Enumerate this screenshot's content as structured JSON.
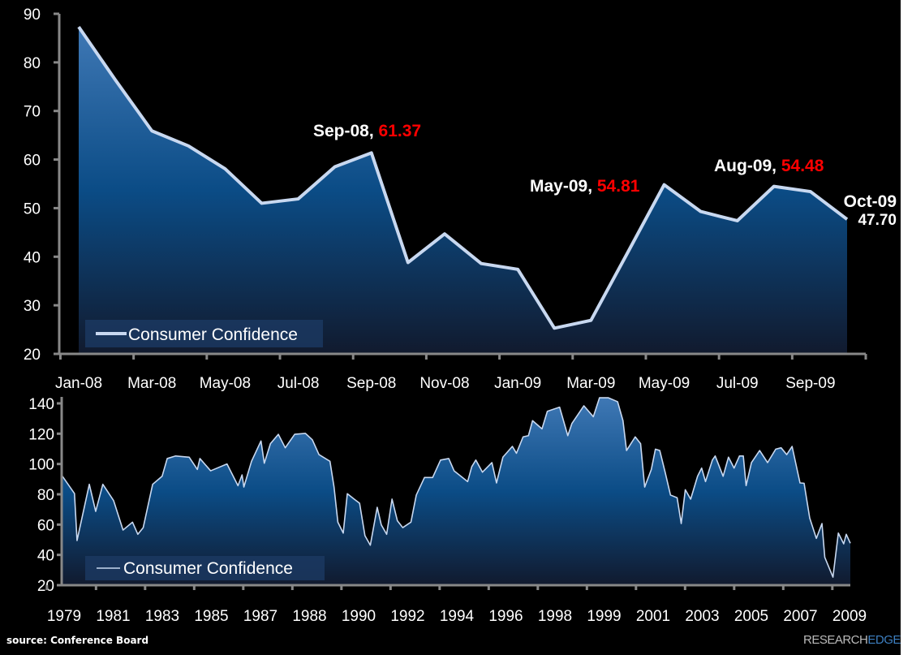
{
  "chart_data": [
    {
      "type": "area",
      "categories": [
        "Jan-08",
        "Feb-08",
        "Mar-08",
        "Apr-08",
        "May-08",
        "Jun-08",
        "Jul-08",
        "Aug-08",
        "Sep-08",
        "Oct-08",
        "Nov-08",
        "Dec-08",
        "Jan-09",
        "Feb-09",
        "Mar-09",
        "Apr-09",
        "May-09",
        "Jun-09",
        "Jul-09",
        "Aug-09",
        "Sep-09",
        "Oct-09"
      ],
      "tick_labels": [
        "Jan-08",
        "Mar-08",
        "May-08",
        "Jul-08",
        "Sep-08",
        "Nov-08",
        "Jan-09",
        "Mar-09",
        "May-09",
        "Jul-09",
        "Sep-09"
      ],
      "series": [
        {
          "name": "Consumer Confidence",
          "values": [
            87.3,
            76.4,
            65.9,
            62.8,
            58.1,
            51.0,
            51.9,
            58.5,
            61.37,
            38.8,
            44.7,
            38.6,
            37.4,
            25.3,
            26.9,
            40.8,
            54.81,
            49.3,
            47.4,
            54.48,
            53.4,
            47.7
          ]
        }
      ],
      "ylim": [
        20,
        90
      ],
      "yticks": [
        20,
        30,
        40,
        50,
        60,
        70,
        80,
        90
      ],
      "legend": "bottom-left",
      "grid": false,
      "annotations": [
        {
          "label": "Sep-08, ",
          "value": "61.37",
          "index": 8
        },
        {
          "label": "May-09, ",
          "value": "54.81",
          "index": 16
        },
        {
          "label": "Aug-09, ",
          "value": "54.48",
          "index": 19
        },
        {
          "label": "Oct-09",
          "value": "47.70",
          "index": 21
        }
      ],
      "colors": {
        "line": "#c8d8f0",
        "fill_top": "#3f78b5",
        "fill_bottom": "#111a2e",
        "annotation_value": "#ff0000"
      }
    },
    {
      "type": "area",
      "x_unit": "year",
      "tick_labels": [
        "1979",
        "1981",
        "1983",
        "1985",
        "1987",
        "1988",
        "1990",
        "1992",
        "1994",
        "1996",
        "1998",
        "1999",
        "2001",
        "2003",
        "2005",
        "2007",
        "2009"
      ],
      "series": [
        {
          "name": "Consumer Confidence",
          "points": [
            [
              1979.0,
              91.9
            ],
            [
              1979.47,
              80.5
            ],
            [
              1979.57,
              49.5
            ],
            [
              1980.05,
              86.6
            ],
            [
              1980.3,
              68.7
            ],
            [
              1980.58,
              86.6
            ],
            [
              1981.0,
              75.9
            ],
            [
              1981.37,
              56.4
            ],
            [
              1981.74,
              61.6
            ],
            [
              1981.95,
              53.6
            ],
            [
              1982.16,
              58
            ],
            [
              1982.53,
              86.6
            ],
            [
              1982.9,
              91.9
            ],
            [
              1983.1,
              103.6
            ],
            [
              1983.43,
              105.3
            ],
            [
              1983.96,
              104.5
            ],
            [
              1984.28,
              96.4
            ],
            [
              1984.38,
              103.6
            ],
            [
              1984.8,
              95.5
            ],
            [
              1985.44,
              100
            ],
            [
              1985.87,
              85.7
            ],
            [
              1986.03,
              92.8
            ],
            [
              1986.1,
              84.8
            ],
            [
              1986.4,
              101.8
            ],
            [
              1986.77,
              115.2
            ],
            [
              1986.9,
              100.5
            ],
            [
              1987.14,
              113.4
            ],
            [
              1987.45,
              119.6
            ],
            [
              1987.72,
              110.7
            ],
            [
              1988.09,
              119.6
            ],
            [
              1988.51,
              120.2
            ],
            [
              1988.78,
              116
            ],
            [
              1989.04,
              106.2
            ],
            [
              1989.47,
              101.8
            ],
            [
              1989.63,
              84.8
            ],
            [
              1989.78,
              61.6
            ],
            [
              1989.99,
              54.4
            ],
            [
              1990.15,
              80.4
            ],
            [
              1990.42,
              76.8
            ],
            [
              1990.63,
              74.1
            ],
            [
              1990.84,
              52.7
            ],
            [
              1991.05,
              46.4
            ],
            [
              1991.32,
              71.4
            ],
            [
              1991.48,
              59.8
            ],
            [
              1991.69,
              53.6
            ],
            [
              1991.9,
              76.8
            ],
            [
              1992.11,
              62.5
            ],
            [
              1992.32,
              58
            ],
            [
              1992.64,
              61.6
            ],
            [
              1992.85,
              79.5
            ],
            [
              1993.17,
              91.1
            ],
            [
              1993.49,
              91.1
            ],
            [
              1993.8,
              102.6
            ],
            [
              1994.12,
              103.6
            ],
            [
              1994.33,
              95.5
            ],
            [
              1994.86,
              88.4
            ],
            [
              1995.02,
              98.2
            ],
            [
              1995.18,
              102.6
            ],
            [
              1995.44,
              94.6
            ],
            [
              1995.81,
              100.9
            ],
            [
              1995.99,
              87.5
            ],
            [
              1996.24,
              104.5
            ],
            [
              1996.61,
              111.6
            ],
            [
              1996.77,
              107.1
            ],
            [
              1997.03,
              117.9
            ],
            [
              1997.24,
              118.7
            ],
            [
              1997.4,
              128.6
            ],
            [
              1997.77,
              123.2
            ],
            [
              1997.98,
              134.8
            ],
            [
              1998.46,
              137.5
            ],
            [
              1998.78,
              118.7
            ],
            [
              1998.94,
              126.7
            ],
            [
              1999.41,
              138.4
            ],
            [
              1999.78,
              131.2
            ],
            [
              2000.02,
              143.7
            ],
            [
              2000.37,
              143.7
            ],
            [
              2000.73,
              141.1
            ],
            [
              2000.94,
              128.6
            ],
            [
              2001.08,
              108.9
            ],
            [
              2001.42,
              117.9
            ],
            [
              2001.63,
              113.4
            ],
            [
              2001.79,
              84.8
            ],
            [
              2002.05,
              96.4
            ],
            [
              2002.21,
              109.8
            ],
            [
              2002.38,
              108.9
            ],
            [
              2002.59,
              94.6
            ],
            [
              2002.8,
              79.5
            ],
            [
              2003.06,
              77.7
            ],
            [
              2003.22,
              60.7
            ],
            [
              2003.38,
              83
            ],
            [
              2003.59,
              76.8
            ],
            [
              2003.86,
              91.9
            ],
            [
              2004.02,
              97.3
            ],
            [
              2004.17,
              88.4
            ],
            [
              2004.44,
              102.6
            ],
            [
              2004.55,
              105.3
            ],
            [
              2004.86,
              91.9
            ],
            [
              2005.07,
              104.5
            ],
            [
              2005.29,
              97.3
            ],
            [
              2005.5,
              105.3
            ],
            [
              2005.65,
              105.3
            ],
            [
              2005.76,
              85.7
            ],
            [
              2005.97,
              100.9
            ],
            [
              2006.29,
              108.9
            ],
            [
              2006.6,
              100.9
            ],
            [
              2006.92,
              109.8
            ],
            [
              2007.13,
              110.7
            ],
            [
              2007.35,
              106.2
            ],
            [
              2007.56,
              111.6
            ],
            [
              2007.87,
              87.5
            ],
            [
              2008.03,
              87.3
            ],
            [
              2008.25,
              64.3
            ],
            [
              2008.51,
              50.9
            ],
            [
              2008.73,
              60.7
            ],
            [
              2008.84,
              38.4
            ],
            [
              2009.16,
              25.3
            ],
            [
              2009.37,
              54.4
            ],
            [
              2009.58,
              47.3
            ],
            [
              2009.68,
              53.6
            ],
            [
              2009.84,
              47.7
            ]
          ]
        }
      ],
      "xlim": [
        1979.0,
        2009.84
      ],
      "ylim": [
        20,
        140
      ],
      "yticks": [
        20,
        40,
        60,
        80,
        100,
        120,
        140
      ],
      "legend": "bottom-left",
      "grid": false
    }
  ],
  "footer": {
    "source": "source: Conference Board",
    "logo_part1": "RESEARCH",
    "logo_part2": "EDGE"
  }
}
